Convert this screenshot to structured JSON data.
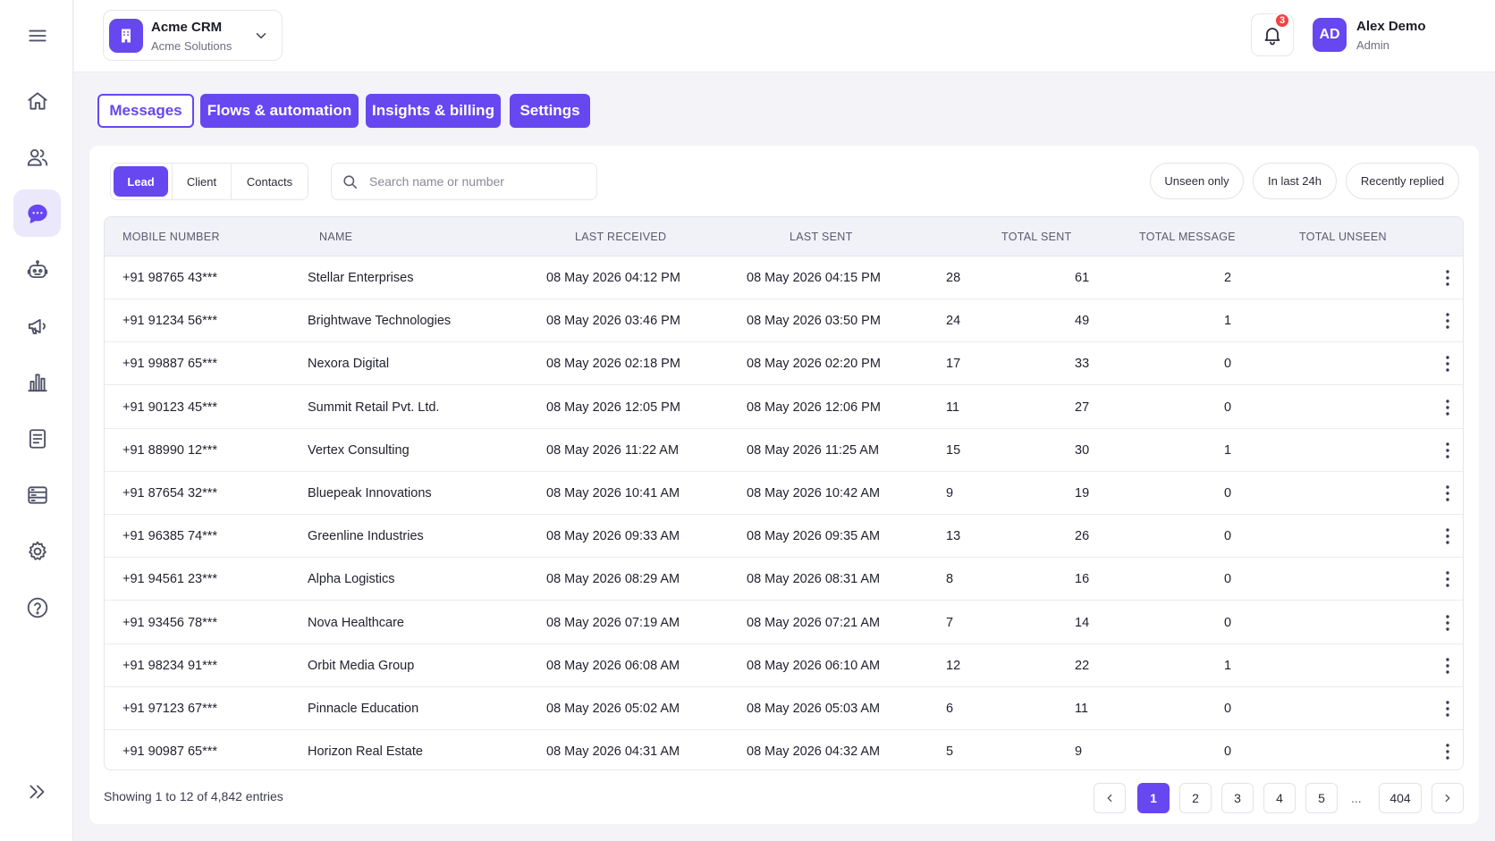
{
  "header": {
    "org_name": "Acme CRM",
    "org_sub": "Acme Solutions",
    "notification_count": "3",
    "user_initials": "AD",
    "user_name": "Alex Demo",
    "user_role": "Admin"
  },
  "main_tabs": [
    {
      "label": "Messages",
      "active": true
    },
    {
      "label": "Flows & automation",
      "active": false
    },
    {
      "label": "Insights & billing",
      "active": false
    },
    {
      "label": "Settings",
      "active": false
    }
  ],
  "segments": [
    {
      "label": "Lead",
      "active": true
    },
    {
      "label": "Client",
      "active": false
    },
    {
      "label": "Contacts",
      "active": false
    }
  ],
  "search": {
    "placeholder": "Search name or number"
  },
  "filters": [
    "Unseen only",
    "In last 24h",
    "Recently replied"
  ],
  "table": {
    "columns": [
      "MOBILE NUMBER",
      "NAME",
      "LAST RECEIVED",
      "LAST SENT",
      "TOTAL SENT",
      "TOTAL MESSAGE",
      "TOTAL UNSEEN"
    ],
    "rows": [
      {
        "mobile": "+91 98765 43***",
        "name": "Stellar Enterprises",
        "last_received": "08 May 2026 04:12 PM",
        "last_sent": "08 May 2026 04:15 PM",
        "total_sent": "28",
        "total_message": "61",
        "total_unseen": "2"
      },
      {
        "mobile": "+91 91234 56***",
        "name": "Brightwave Technologies",
        "last_received": "08 May 2026 03:46 PM",
        "last_sent": "08 May 2026 03:50 PM",
        "total_sent": "24",
        "total_message": "49",
        "total_unseen": "1"
      },
      {
        "mobile": "+91 99887 65***",
        "name": "Nexora Digital",
        "last_received": "08 May 2026 02:18 PM",
        "last_sent": "08 May 2026 02:20 PM",
        "total_sent": "17",
        "total_message": "33",
        "total_unseen": "0"
      },
      {
        "mobile": "+91 90123 45***",
        "name": "Summit Retail Pvt. Ltd.",
        "last_received": "08 May 2026 12:05 PM",
        "last_sent": "08 May 2026 12:06 PM",
        "total_sent": "11",
        "total_message": "27",
        "total_unseen": "0"
      },
      {
        "mobile": "+91 88990 12***",
        "name": "Vertex Consulting",
        "last_received": "08 May 2026 11:22 AM",
        "last_sent": "08 May 2026 11:25 AM",
        "total_sent": "15",
        "total_message": "30",
        "total_unseen": "1"
      },
      {
        "mobile": "+91 87654 32***",
        "name": "Bluepeak Innovations",
        "last_received": "08 May 2026 10:41 AM",
        "last_sent": "08 May 2026 10:42 AM",
        "total_sent": "9",
        "total_message": "19",
        "total_unseen": "0"
      },
      {
        "mobile": "+91 96385 74***",
        "name": "Greenline Industries",
        "last_received": "08 May 2026 09:33 AM",
        "last_sent": "08 May 2026 09:35 AM",
        "total_sent": "13",
        "total_message": "26",
        "total_unseen": "0"
      },
      {
        "mobile": "+91 94561 23***",
        "name": "Alpha Logistics",
        "last_received": "08 May 2026 08:29 AM",
        "last_sent": "08 May 2026 08:31 AM",
        "total_sent": "8",
        "total_message": "16",
        "total_unseen": "0"
      },
      {
        "mobile": "+91 93456 78***",
        "name": "Nova Healthcare",
        "last_received": "08 May 2026 07:19 AM",
        "last_sent": "08 May 2026 07:21 AM",
        "total_sent": "7",
        "total_message": "14",
        "total_unseen": "0"
      },
      {
        "mobile": "+91 98234 91***",
        "name": "Orbit Media Group",
        "last_received": "08 May 2026 06:08 AM",
        "last_sent": "08 May 2026 06:10 AM",
        "total_sent": "12",
        "total_message": "22",
        "total_unseen": "1"
      },
      {
        "mobile": "+91 97123 67***",
        "name": "Pinnacle Education",
        "last_received": "08 May 2026 05:02 AM",
        "last_sent": "08 May 2026 05:03 AM",
        "total_sent": "6",
        "total_message": "11",
        "total_unseen": "0"
      },
      {
        "mobile": "+91 90987 65***",
        "name": "Horizon Real Estate",
        "last_received": "08 May 2026 04:31 AM",
        "last_sent": "08 May 2026 04:32 AM",
        "total_sent": "5",
        "total_message": "9",
        "total_unseen": "0"
      }
    ]
  },
  "footer": {
    "showing_text": "Showing 1 to 12 of 4,842 entries",
    "pages": [
      "1",
      "2",
      "3",
      "4",
      "5"
    ],
    "ellipsis": "...",
    "last_page": "404",
    "current_page": "1"
  },
  "sidebar": {
    "icons": [
      "menu-icon",
      "home-icon",
      "users-icon",
      "chat-icon",
      "bot-icon",
      "megaphone-icon",
      "bar-chart-icon",
      "document-icon",
      "template-icon",
      "gear-icon",
      "help-icon",
      "expand-icon"
    ],
    "active": "chat-icon"
  },
  "colors": {
    "accent": "#6647f0",
    "badge": "#ef4444",
    "background": "#f3f3f8"
  }
}
